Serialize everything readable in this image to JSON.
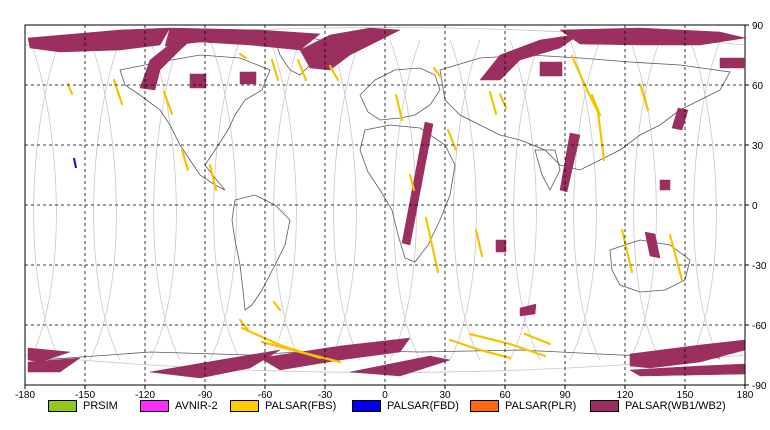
{
  "map": {
    "x_ticks": [
      "-180",
      "-150",
      "-120",
      "-90",
      "-60",
      "-30",
      "0",
      "30",
      "60",
      "90",
      "120",
      "150",
      "180"
    ],
    "y_ticks": [
      "90",
      "60",
      "30",
      "0",
      "-30",
      "-60",
      "-90"
    ],
    "x_range": [
      -180,
      180
    ],
    "y_range": [
      -90,
      90
    ],
    "grid": "dashed every 30 degrees",
    "colors": {
      "background": "#ffffff",
      "grid": "#000000",
      "coastline": "#5a5a5a",
      "orbit_tracks": "#c8c8c8",
      "wide_swath": "#9b2f5f",
      "fine_strip": "#f5c400",
      "fbd_mark": "#1010c0"
    }
  },
  "legend": {
    "items": [
      {
        "label": "PRSIM",
        "color": "#90c81c"
      },
      {
        "label": "AVNIR-2",
        "color": "#ff2cff"
      },
      {
        "label": "PALSAR(FBS)",
        "color": "#ffcc00"
      },
      {
        "label": "PALSAR(FBD)",
        "color": "#0000ee"
      },
      {
        "label": "PALSAR(PLR)",
        "color": "#ff6a10"
      },
      {
        "label": "PALSAR(WB1/WB2)",
        "color": "#9b2f5f"
      }
    ]
  }
}
